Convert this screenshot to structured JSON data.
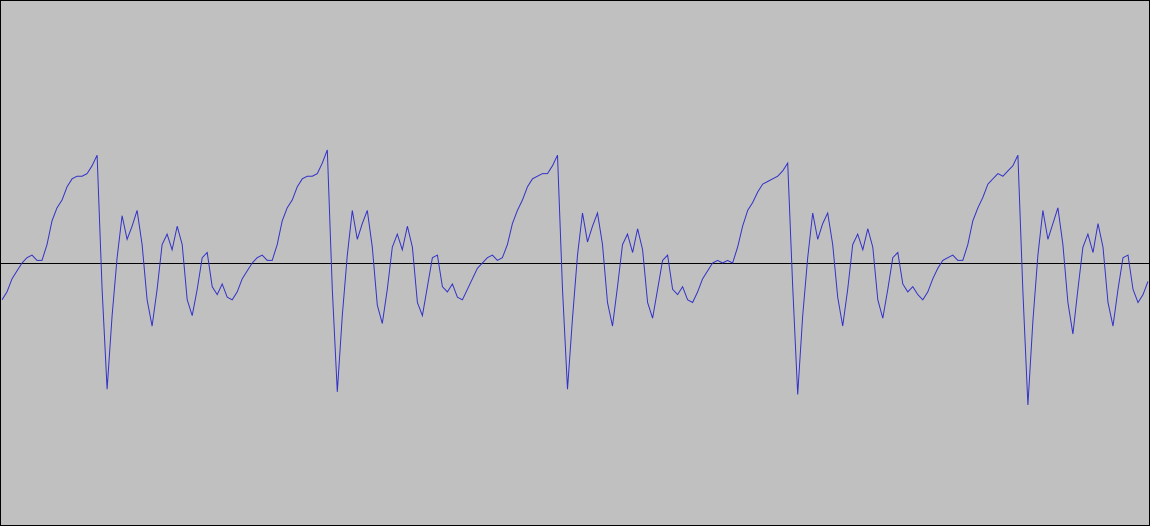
{
  "chart_data": {
    "type": "line",
    "ylim": [
      -1,
      1
    ],
    "series": [
      {
        "color": "#3232c8",
        "values": [
          -0.14,
          -0.11,
          -0.06,
          -0.03,
          0.0,
          0.02,
          0.03,
          0.01,
          0.01,
          0.07,
          0.16,
          0.21,
          0.24,
          0.29,
          0.32,
          0.33,
          0.33,
          0.34,
          0.37,
          0.41,
          -0.1,
          -0.48,
          -0.2,
          0.02,
          0.18,
          0.09,
          0.14,
          0.2,
          0.07,
          -0.14,
          -0.24,
          -0.1,
          0.07,
          0.11,
          0.05,
          0.14,
          0.07,
          -0.14,
          -0.2,
          -0.1,
          0.02,
          0.04,
          -0.09,
          -0.12,
          -0.08,
          -0.13,
          -0.14,
          -0.11,
          -0.06,
          -0.03,
          0.0,
          0.02,
          0.03,
          0.01,
          0.01,
          0.07,
          0.16,
          0.21,
          0.24,
          0.29,
          0.32,
          0.33,
          0.33,
          0.34,
          0.38,
          0.43,
          -0.1,
          -0.49,
          -0.2,
          0.03,
          0.2,
          0.09,
          0.15,
          0.2,
          0.06,
          -0.16,
          -0.23,
          -0.1,
          0.06,
          0.11,
          0.05,
          0.14,
          0.06,
          -0.15,
          -0.2,
          -0.09,
          0.02,
          0.03,
          -0.09,
          -0.11,
          -0.08,
          -0.13,
          -0.14,
          -0.1,
          -0.06,
          -0.02,
          0.0,
          0.02,
          0.03,
          0.01,
          0.02,
          0.07,
          0.15,
          0.2,
          0.24,
          0.29,
          0.32,
          0.33,
          0.34,
          0.34,
          0.37,
          0.41,
          -0.1,
          -0.48,
          -0.21,
          0.03,
          0.19,
          0.08,
          0.14,
          0.19,
          0.07,
          -0.15,
          -0.24,
          -0.09,
          0.07,
          0.11,
          0.04,
          0.13,
          0.05,
          -0.15,
          -0.21,
          -0.1,
          0.01,
          0.03,
          -0.1,
          -0.12,
          -0.09,
          -0.14,
          -0.15,
          -0.11,
          -0.06,
          -0.03,
          0.0,
          0.01,
          0.0,
          0.01,
          0.0,
          0.06,
          0.14,
          0.2,
          0.23,
          0.27,
          0.3,
          0.31,
          0.32,
          0.33,
          0.35,
          0.38,
          -0.09,
          -0.5,
          -0.2,
          0.02,
          0.19,
          0.09,
          0.15,
          0.19,
          0.07,
          -0.13,
          -0.24,
          -0.1,
          0.07,
          0.11,
          0.05,
          0.13,
          0.06,
          -0.14,
          -0.21,
          -0.1,
          0.02,
          0.04,
          -0.08,
          -0.11,
          -0.09,
          -0.12,
          -0.14,
          -0.11,
          -0.06,
          -0.02,
          0.01,
          0.02,
          0.03,
          0.01,
          0.01,
          0.07,
          0.16,
          0.21,
          0.25,
          0.3,
          0.32,
          0.34,
          0.33,
          0.35,
          0.37,
          0.41,
          -0.11,
          -0.54,
          -0.22,
          0.03,
          0.2,
          0.09,
          0.15,
          0.21,
          0.07,
          -0.15,
          -0.27,
          -0.1,
          0.06,
          0.11,
          0.04,
          0.15,
          0.06,
          -0.15,
          -0.24,
          -0.1,
          0.02,
          0.03,
          -0.1,
          -0.15,
          -0.12,
          -0.07
        ]
      }
    ]
  }
}
